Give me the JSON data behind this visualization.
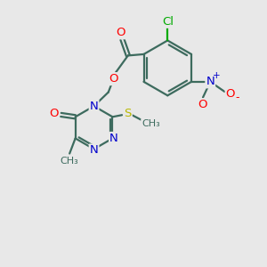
{
  "bg_color": "#e8e8e8",
  "bond_color": "#3d6b5e",
  "colors": {
    "O": "#ff0000",
    "N": "#0000cc",
    "S": "#b8b800",
    "Cl": "#00aa00",
    "C": "#3d6b5e"
  }
}
